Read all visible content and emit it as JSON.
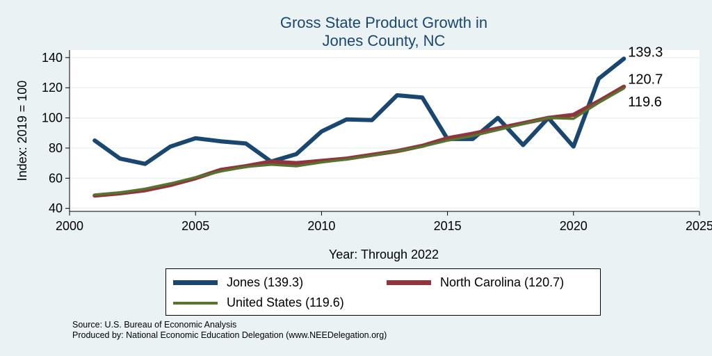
{
  "chart_data": {
    "type": "line",
    "title": [
      "Gross State Product Growth in",
      "Jones County, NC"
    ],
    "xlabel": "Year: Through 2022",
    "ylabel": "Index: 2019 = 100",
    "xlim": [
      2000,
      2025
    ],
    "ylim": [
      38,
      145
    ],
    "xticks": [
      2000,
      2005,
      2010,
      2015,
      2020,
      2025
    ],
    "yticks": [
      40,
      60,
      80,
      100,
      120,
      140
    ],
    "x": [
      2001,
      2002,
      2003,
      2004,
      2005,
      2006,
      2007,
      2008,
      2009,
      2010,
      2011,
      2012,
      2013,
      2014,
      2015,
      2016,
      2017,
      2018,
      2019,
      2020,
      2021,
      2022
    ],
    "series": [
      {
        "name": "Jones",
        "color": "#1a476f",
        "values": [
          85,
          73,
          69.5,
          81,
          86.5,
          84.5,
          83,
          71,
          76,
          91,
          99,
          98.5,
          115,
          113.5,
          86,
          86,
          100,
          82,
          100,
          81,
          126,
          139.3
        ],
        "end_label": "139.3"
      },
      {
        "name": "North Carolina",
        "color": "#90353b",
        "values": [
          48.5,
          50,
          52,
          55.5,
          60,
          65.5,
          68,
          71,
          70,
          71.5,
          73,
          75.5,
          78,
          81.5,
          86.5,
          89.5,
          93,
          96.5,
          100,
          102,
          111,
          120.7
        ],
        "end_label": "120.7"
      },
      {
        "name": "United States",
        "color": "#55752f",
        "values": [
          49,
          50.5,
          53,
          56.5,
          60.5,
          64.5,
          67.5,
          69,
          68,
          70.5,
          72.5,
          75,
          78,
          81,
          85,
          88,
          92,
          96,
          100,
          99.5,
          110,
          119.6
        ],
        "end_label": "119.6"
      }
    ]
  },
  "legend": {
    "jones_label": "Jones  (139.3)",
    "nc_label": "North Carolina (120.7)",
    "us_label": "United States (119.6)"
  },
  "footer": {
    "source": "Source: U.S. Bureau of Economic Analysis",
    "produced": "Produced by: National Economic Education Delegation (www.NEEDelegation.org)"
  }
}
